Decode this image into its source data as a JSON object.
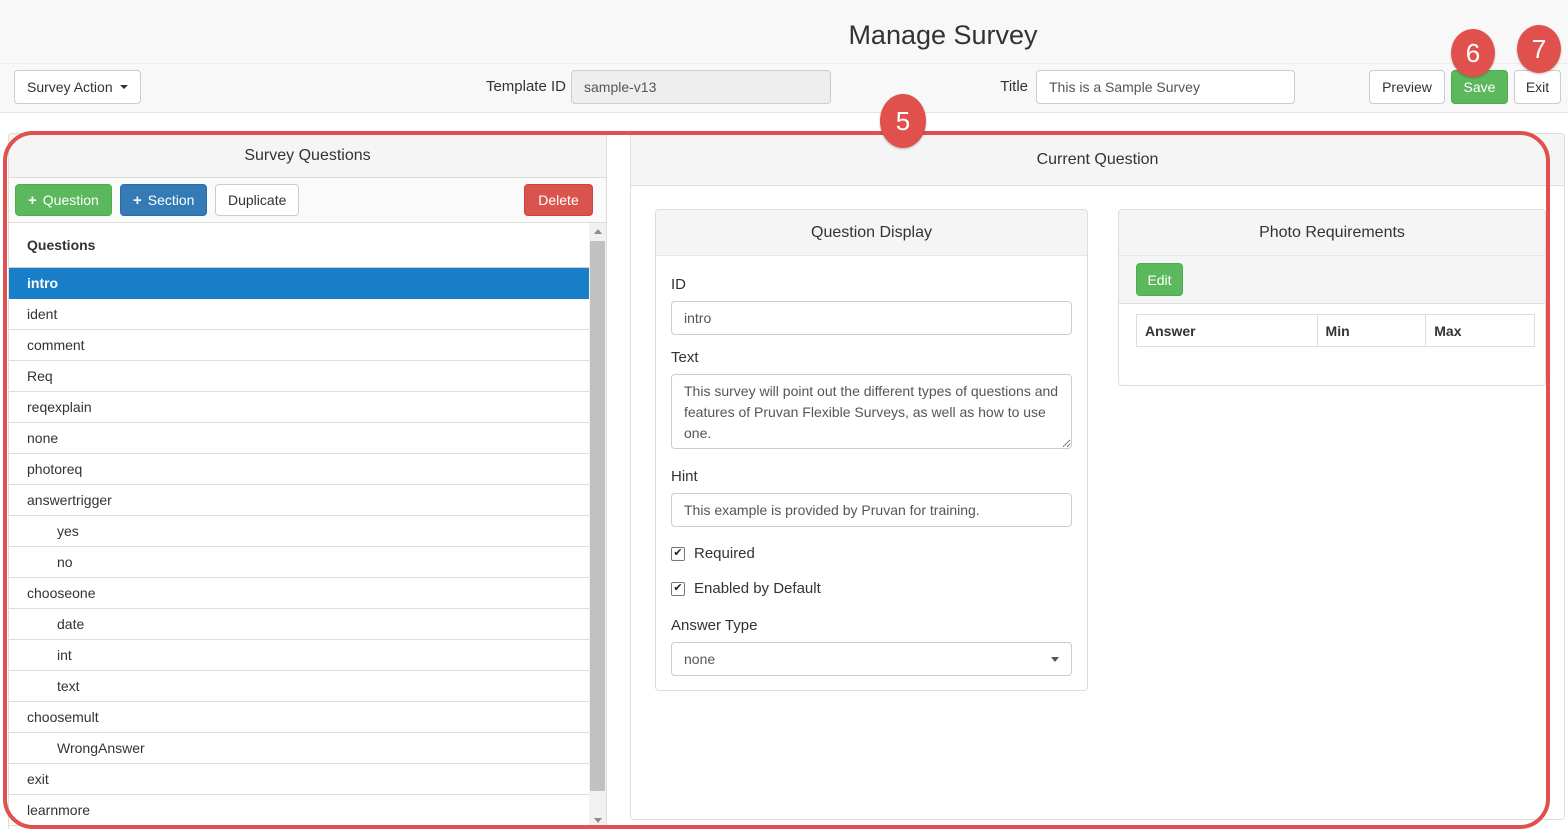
{
  "header": {
    "title": "Manage Survey"
  },
  "toolbar": {
    "survey_action_label": "Survey Action",
    "template_id_label": "Template ID",
    "template_id_value": "sample-v13",
    "title_label": "Title",
    "title_value": "This is a Sample Survey",
    "preview_label": "Preview",
    "save_label": "Save",
    "exit_label": "Exit"
  },
  "annotations": {
    "color": "#e0514d",
    "step5": "5",
    "step6": "6",
    "step7": "7"
  },
  "survey_questions": {
    "title": "Survey Questions",
    "add_question_label": "Question",
    "add_section_label": "Section",
    "duplicate_label": "Duplicate",
    "delete_label": "Delete",
    "list_header": "Questions",
    "items": [
      {
        "label": "intro",
        "indent": 0,
        "selected": true
      },
      {
        "label": "ident",
        "indent": 0,
        "selected": false
      },
      {
        "label": "comment",
        "indent": 0,
        "selected": false
      },
      {
        "label": "Req",
        "indent": 0,
        "selected": false
      },
      {
        "label": "reqexplain",
        "indent": 0,
        "selected": false
      },
      {
        "label": "none",
        "indent": 0,
        "selected": false
      },
      {
        "label": "photoreq",
        "indent": 0,
        "selected": false
      },
      {
        "label": "answertrigger",
        "indent": 0,
        "selected": false
      },
      {
        "label": "yes",
        "indent": 1,
        "selected": false
      },
      {
        "label": "no",
        "indent": 1,
        "selected": false
      },
      {
        "label": "chooseone",
        "indent": 0,
        "selected": false
      },
      {
        "label": "date",
        "indent": 1,
        "selected": false
      },
      {
        "label": "int",
        "indent": 1,
        "selected": false
      },
      {
        "label": "text",
        "indent": 1,
        "selected": false
      },
      {
        "label": "choosemult",
        "indent": 0,
        "selected": false
      },
      {
        "label": "WrongAnswer",
        "indent": 1,
        "selected": false
      },
      {
        "label": "exit",
        "indent": 0,
        "selected": false
      },
      {
        "label": "learnmore",
        "indent": 0,
        "selected": false
      }
    ]
  },
  "current_question": {
    "title": "Current Question",
    "question_display": {
      "title": "Question Display",
      "id_label": "ID",
      "id_value": "intro",
      "text_label": "Text",
      "text_value": "This survey will point out the different types of questions and features of Pruvan Flexible Surveys, as well as how to use one.",
      "hint_label": "Hint",
      "hint_value": "This example is provided by Pruvan for training.",
      "required_label": "Required",
      "required_checked": true,
      "enabled_label": "Enabled by Default",
      "enabled_checked": true,
      "answer_type_label": "Answer Type",
      "answer_type_value": "none"
    },
    "photo_requirements": {
      "title": "Photo Requirements",
      "edit_label": "Edit",
      "columns": [
        "Answer",
        "Min",
        "Max"
      ],
      "rows": []
    }
  },
  "colors": {
    "green": "#5cb85c",
    "blue": "#337ab7",
    "red": "#d9534f",
    "selected_row": "#177ec7",
    "annotation": "#e0514d",
    "header_bg": "#f8f8f8",
    "panel_heading_bg": "#f5f5f5"
  }
}
